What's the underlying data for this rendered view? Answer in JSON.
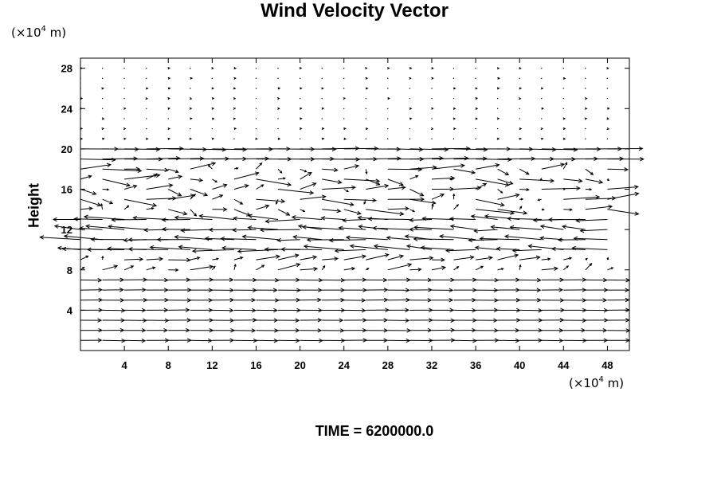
{
  "chart_data": {
    "type": "vector-field",
    "title": "Wind Velocity Vector",
    "y_unit": {
      "prefix": "(×10",
      "exp": "4",
      "suffix": " m)"
    },
    "x_unit": {
      "prefix": "(×10",
      "exp": "4",
      "suffix": " m)"
    },
    "ylabel": "Height",
    "xlabel": "",
    "xlim": [
      0,
      50
    ],
    "ylim": [
      0,
      29
    ],
    "xticks": [
      4,
      8,
      12,
      16,
      20,
      24,
      28,
      32,
      36,
      40,
      44,
      48
    ],
    "yticks": [
      4,
      8,
      12,
      16,
      20,
      24,
      28
    ],
    "grid": false,
    "grid_x": {
      "start": 0,
      "step": 2,
      "count": 25
    },
    "grid_y": {
      "start": 1,
      "step": 1,
      "count": 28
    },
    "vector_scale_note": "u,v in x-units per grid cell",
    "bands": [
      {
        "y": [
          1,
          7
        ],
        "u": 1.1,
        "v": 0.0,
        "jitter": 0.05
      },
      {
        "y": [
          8,
          9
        ],
        "u": 0.6,
        "v": 0.3,
        "jitter": 0.6
      },
      {
        "y": [
          10,
          13
        ],
        "u": -1.6,
        "v": 0.1,
        "jitter": 0.5
      },
      {
        "y": [
          14,
          18
        ],
        "u": 0.9,
        "v": 0.0,
        "jitter": 1.1
      },
      {
        "y": [
          19,
          20
        ],
        "u": 1.8,
        "v": 0.0,
        "jitter": 0.15
      },
      {
        "y": [
          21,
          28
        ],
        "u": 0.05,
        "v": 0.0,
        "jitter": 0.04
      }
    ],
    "line_color": "#000000"
  },
  "footer": {
    "time_label": "TIME = 6200000.0"
  }
}
